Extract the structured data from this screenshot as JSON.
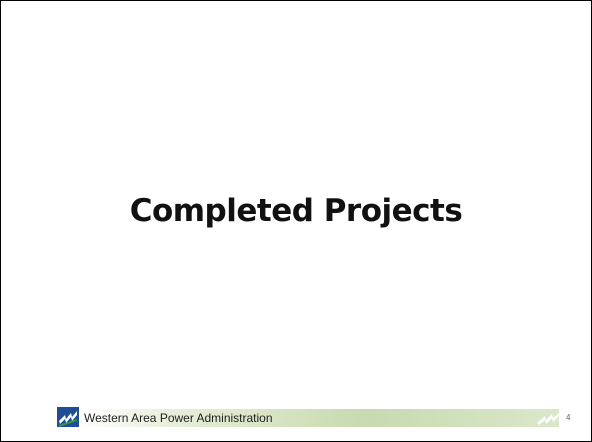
{
  "slide": {
    "title": "Completed Projects",
    "footer": "Western Area Power Administration",
    "page_number": "4"
  }
}
